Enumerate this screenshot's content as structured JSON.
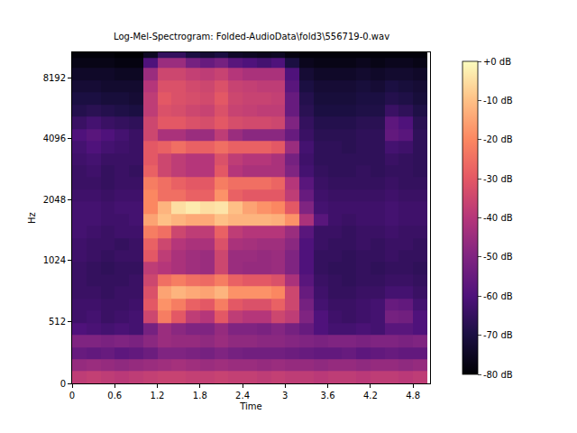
{
  "chart_data": {
    "type": "heatmap",
    "title": "Log-Mel-Spectrogram: Folded-AudioData\\fold3\\556719-0.wav",
    "x_label": "Time",
    "y_label": "Hz",
    "log": "y",
    "xlim": [
      0,
      5.04
    ],
    "ylim": [
      0,
      11025
    ],
    "xticks": [
      0,
      0.6,
      1.2,
      1.8,
      2.4,
      3,
      3.6,
      4.2,
      4.8
    ],
    "yticks": [
      0,
      512,
      1024,
      2048,
      4096,
      8192
    ],
    "x": [
      0.1,
      0.3,
      0.5,
      0.7,
      0.9,
      1.1,
      1.3,
      1.5,
      1.7,
      1.9,
      2.1,
      2.3,
      2.5,
      2.7,
      2.9,
      3.1,
      3.3,
      3.5,
      3.7,
      3.9,
      4.1,
      4.3,
      4.5,
      4.7,
      4.9
    ],
    "y": [
      50,
      150,
      250,
      350,
      450,
      550,
      650,
      750,
      850,
      950,
      1072,
      1231,
      1414,
      1625,
      1866,
      2144,
      2462,
      2828,
      3249,
      3732,
      4287,
      4925,
      5657,
      6498,
      7464,
      8574,
      9849,
      10900
    ],
    "z": [
      [
        -38,
        -37,
        -38,
        -39,
        -38,
        -37,
        -36,
        -36,
        -37,
        -37,
        -36,
        -37,
        -37,
        -38,
        -37,
        -38,
        -38,
        -39,
        -38,
        -38,
        -39,
        -38,
        -38,
        -39,
        -38
      ],
      [
        -46,
        -45,
        -46,
        -47,
        -46,
        -45,
        -44,
        -43,
        -44,
        -45,
        -44,
        -45,
        -45,
        -46,
        -45,
        -46,
        -46,
        -47,
        -46,
        -46,
        -47,
        -46,
        -46,
        -47,
        -46
      ],
      [
        -55,
        -56,
        -55,
        -57,
        -56,
        -54,
        -50,
        -50,
        -51,
        -52,
        -50,
        -52,
        -53,
        -53,
        -53,
        -54,
        -55,
        -56,
        -56,
        -55,
        -57,
        -56,
        -55,
        -56,
        -56
      ],
      [
        -50,
        -50,
        -51,
        -50,
        -51,
        -48,
        -45,
        -46,
        -46,
        -47,
        -45,
        -47,
        -47,
        -48,
        -48,
        -49,
        -50,
        -51,
        -50,
        -50,
        -51,
        -50,
        -50,
        -51,
        -50
      ],
      [
        -60,
        -61,
        -62,
        -61,
        -62,
        -52,
        -45,
        -48,
        -50,
        -50,
        -46,
        -50,
        -50,
        -51,
        -49,
        -52,
        -55,
        -60,
        -62,
        -62,
        -61,
        -62,
        -58,
        -58,
        -60
      ],
      [
        -63,
        -62,
        -64,
        -63,
        -62,
        -35,
        -22,
        -30,
        -38,
        -40,
        -30,
        -38,
        -40,
        -40,
        -35,
        -38,
        -50,
        -60,
        -63,
        -64,
        -63,
        -62,
        -52,
        -53,
        -60
      ],
      [
        -63,
        -63,
        -64,
        -64,
        -63,
        -30,
        -18,
        -22,
        -28,
        -30,
        -22,
        -30,
        -32,
        -32,
        -28,
        -35,
        -52,
        -62,
        -64,
        -64,
        -63,
        -62,
        -55,
        -56,
        -62
      ],
      [
        -64,
        -64,
        -65,
        -64,
        -64,
        -32,
        -15,
        -12,
        -14,
        -15,
        -12,
        -18,
        -18,
        -18,
        -20,
        -35,
        -55,
        -63,
        -65,
        -65,
        -64,
        -64,
        -62,
        -62,
        -64
      ],
      [
        -64,
        -65,
        -65,
        -65,
        -64,
        -35,
        -25,
        -22,
        -25,
        -26,
        -22,
        -28,
        -30,
        -30,
        -32,
        -42,
        -58,
        -64,
        -65,
        -66,
        -65,
        -65,
        -64,
        -64,
        -65
      ],
      [
        -64,
        -65,
        -66,
        -65,
        -65,
        -38,
        -40,
        -42,
        -44,
        -45,
        -35,
        -45,
        -46,
        -46,
        -45,
        -50,
        -60,
        -65,
        -66,
        -66,
        -65,
        -66,
        -65,
        -65,
        -66
      ],
      [
        -63,
        -64,
        -65,
        -64,
        -64,
        -30,
        -38,
        -42,
        -44,
        -45,
        -35,
        -45,
        -45,
        -46,
        -45,
        -50,
        -60,
        -65,
        -65,
        -66,
        -65,
        -65,
        -64,
        -65,
        -65
      ],
      [
        -63,
        -64,
        -64,
        -65,
        -64,
        -28,
        -35,
        -40,
        -42,
        -42,
        -32,
        -42,
        -43,
        -44,
        -44,
        -48,
        -60,
        -64,
        -65,
        -65,
        -64,
        -65,
        -64,
        -64,
        -65
      ],
      [
        -62,
        -63,
        -64,
        -63,
        -63,
        -22,
        -25,
        -35,
        -38,
        -38,
        -28,
        -38,
        -40,
        -40,
        -40,
        -45,
        -58,
        -64,
        -64,
        -65,
        -64,
        -64,
        -63,
        -64,
        -64
      ],
      [
        -62,
        -62,
        -63,
        -63,
        -62,
        -15,
        -10,
        -12,
        -14,
        -14,
        -10,
        -12,
        -12,
        -12,
        -13,
        -18,
        -42,
        -58,
        -63,
        -64,
        -63,
        -63,
        -62,
        -63,
        -63
      ],
      [
        -62,
        -62,
        -63,
        -62,
        -62,
        -20,
        -12,
        -5,
        -3,
        -5,
        -4,
        -10,
        -15,
        -18,
        -20,
        -30,
        -50,
        -62,
        -63,
        -63,
        -63,
        -63,
        -62,
        -63,
        -63
      ],
      [
        -63,
        -63,
        -64,
        -63,
        -63,
        -20,
        -25,
        -25,
        -28,
        -28,
        -18,
        -28,
        -30,
        -30,
        -30,
        -38,
        -55,
        -63,
        -64,
        -64,
        -64,
        -64,
        -63,
        -64,
        -64
      ],
      [
        -64,
        -64,
        -65,
        -64,
        -64,
        -22,
        -25,
        -28,
        -30,
        -30,
        -22,
        -25,
        -25,
        -25,
        -27,
        -40,
        -58,
        -64,
        -65,
        -65,
        -65,
        -65,
        -64,
        -65,
        -65
      ],
      [
        -64,
        -63,
        -65,
        -64,
        -65,
        -28,
        -35,
        -38,
        -40,
        -40,
        -30,
        -40,
        -42,
        -42,
        -42,
        -50,
        -62,
        -65,
        -66,
        -66,
        -65,
        -66,
        -65,
        -65,
        -66
      ],
      [
        -63,
        -62,
        -64,
        -64,
        -64,
        -30,
        -35,
        -38,
        -40,
        -40,
        -32,
        -38,
        -40,
        -40,
        -42,
        -52,
        -63,
        -66,
        -66,
        -66,
        -66,
        -66,
        -64,
        -65,
        -66
      ],
      [
        -62,
        -60,
        -62,
        -63,
        -64,
        -30,
        -28,
        -25,
        -28,
        -28,
        -25,
        -28,
        -28,
        -28,
        -30,
        -45,
        -62,
        -66,
        -66,
        -67,
        -66,
        -66,
        -62,
        -63,
        -66
      ],
      [
        -60,
        -58,
        -60,
        -62,
        -64,
        -35,
        -42,
        -42,
        -45,
        -45,
        -38,
        -45,
        -48,
        -48,
        -48,
        -55,
        -64,
        -67,
        -67,
        -67,
        -66,
        -66,
        -56,
        -58,
        -66
      ],
      [
        -64,
        -62,
        -64,
        -65,
        -66,
        -35,
        -30,
        -30,
        -32,
        -33,
        -30,
        -33,
        -34,
        -34,
        -35,
        -50,
        -65,
        -68,
        -68,
        -68,
        -67,
        -67,
        -57,
        -60,
        -67
      ],
      [
        -68,
        -67,
        -68,
        -69,
        -70,
        -38,
        -32,
        -33,
        -35,
        -36,
        -32,
        -36,
        -37,
        -38,
        -38,
        -55,
        -67,
        -70,
        -70,
        -70,
        -69,
        -69,
        -64,
        -66,
        -69
      ],
      [
        -70,
        -70,
        -71,
        -71,
        -72,
        -38,
        -30,
        -32,
        -33,
        -34,
        -30,
        -35,
        -36,
        -36,
        -37,
        -55,
        -68,
        -71,
        -71,
        -71,
        -70,
        -70,
        -68,
        -69,
        -71
      ],
      [
        -72,
        -72,
        -73,
        -73,
        -73,
        -40,
        -32,
        -32,
        -34,
        -35,
        -32,
        -36,
        -37,
        -38,
        -38,
        -58,
        -70,
        -72,
        -72,
        -72,
        -71,
        -72,
        -70,
        -71,
        -72
      ],
      [
        -74,
        -74,
        -74,
        -75,
        -75,
        -45,
        -35,
        -35,
        -37,
        -38,
        -36,
        -40,
        -42,
        -42,
        -42,
        -60,
        -72,
        -74,
        -74,
        -74,
        -73,
        -74,
        -73,
        -73,
        -74
      ],
      [
        -77,
        -77,
        -77,
        -78,
        -78,
        -60,
        -45,
        -45,
        -52,
        -55,
        -52,
        -58,
        -60,
        -62,
        -60,
        -70,
        -76,
        -77,
        -77,
        -77,
        -76,
        -77,
        -76,
        -76,
        -77
      ],
      [
        -79,
        -79,
        -79,
        -80,
        -80,
        -75,
        -65,
        -65,
        -70,
        -72,
        -70,
        -74,
        -75,
        -76,
        -75,
        -78,
        -79,
        -79,
        -79,
        -79,
        -79,
        -79,
        -79,
        -79,
        -79
      ]
    ],
    "colorbar": {
      "range": [
        -80,
        0
      ],
      "ticks": [
        {
          "value": 0,
          "label": "+0 dB"
        },
        {
          "value": -10,
          "label": "-10 dB"
        },
        {
          "value": -20,
          "label": "-20 dB"
        },
        {
          "value": -30,
          "label": "-30 dB"
        },
        {
          "value": -40,
          "label": "-40 dB"
        },
        {
          "value": -50,
          "label": "-50 dB"
        },
        {
          "value": -60,
          "label": "-60 dB"
        },
        {
          "value": -70,
          "label": "-70 dB"
        },
        {
          "value": -80,
          "label": "-80 dB"
        }
      ]
    }
  }
}
